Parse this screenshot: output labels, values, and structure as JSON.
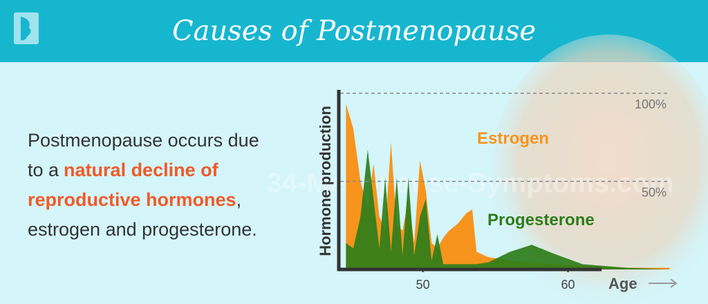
{
  "header": {
    "title": "Causes of Postmenopause"
  },
  "paragraph": [
    "Postmenopause occurs due",
    "to a",
    "natural decline of",
    "reproductive hormones",
    ",",
    "estrogen and progesterone."
  ],
  "watermark": "34-Menopause-Symptoms.com",
  "chart_data": {
    "type": "area",
    "y_label": "Hormone production",
    "x_label": "Age",
    "x": [
      44.7,
      45.2,
      45.7,
      46.2,
      46.6,
      47.0,
      47.4,
      47.8,
      48.2,
      48.6,
      49.0,
      49.4,
      49.8,
      50.2,
      50.6,
      51.0,
      51.4,
      51.8,
      52.4,
      53.0,
      53.4,
      53.7,
      54.5,
      56,
      57.5,
      59,
      61,
      64,
      67
    ],
    "series": [
      {
        "name": "Estrogen",
        "color": "#f7941d",
        "values": [
          94,
          80,
          50,
          35,
          60,
          30,
          22,
          72,
          25,
          22,
          40,
          15,
          62,
          45,
          15,
          12,
          18,
          22,
          26,
          32,
          34,
          10,
          7,
          5,
          4,
          3,
          2,
          1,
          1
        ]
      },
      {
        "name": "Progesterone",
        "color": "#2e7d1a",
        "values": [
          15,
          12,
          30,
          68,
          40,
          12,
          52,
          10,
          52,
          8,
          52,
          8,
          30,
          40,
          5,
          20,
          3,
          3,
          3,
          3,
          3,
          3,
          4,
          10,
          14,
          9,
          3,
          1,
          0
        ]
      }
    ],
    "xlim": [
      44.3,
      67.5
    ],
    "ylim": [
      0,
      100
    ],
    "xticks": [
      50,
      60
    ],
    "yticks": [
      {
        "value": 50,
        "label": "50%"
      },
      {
        "value": 100,
        "label": "100%"
      }
    ],
    "grid": true
  }
}
